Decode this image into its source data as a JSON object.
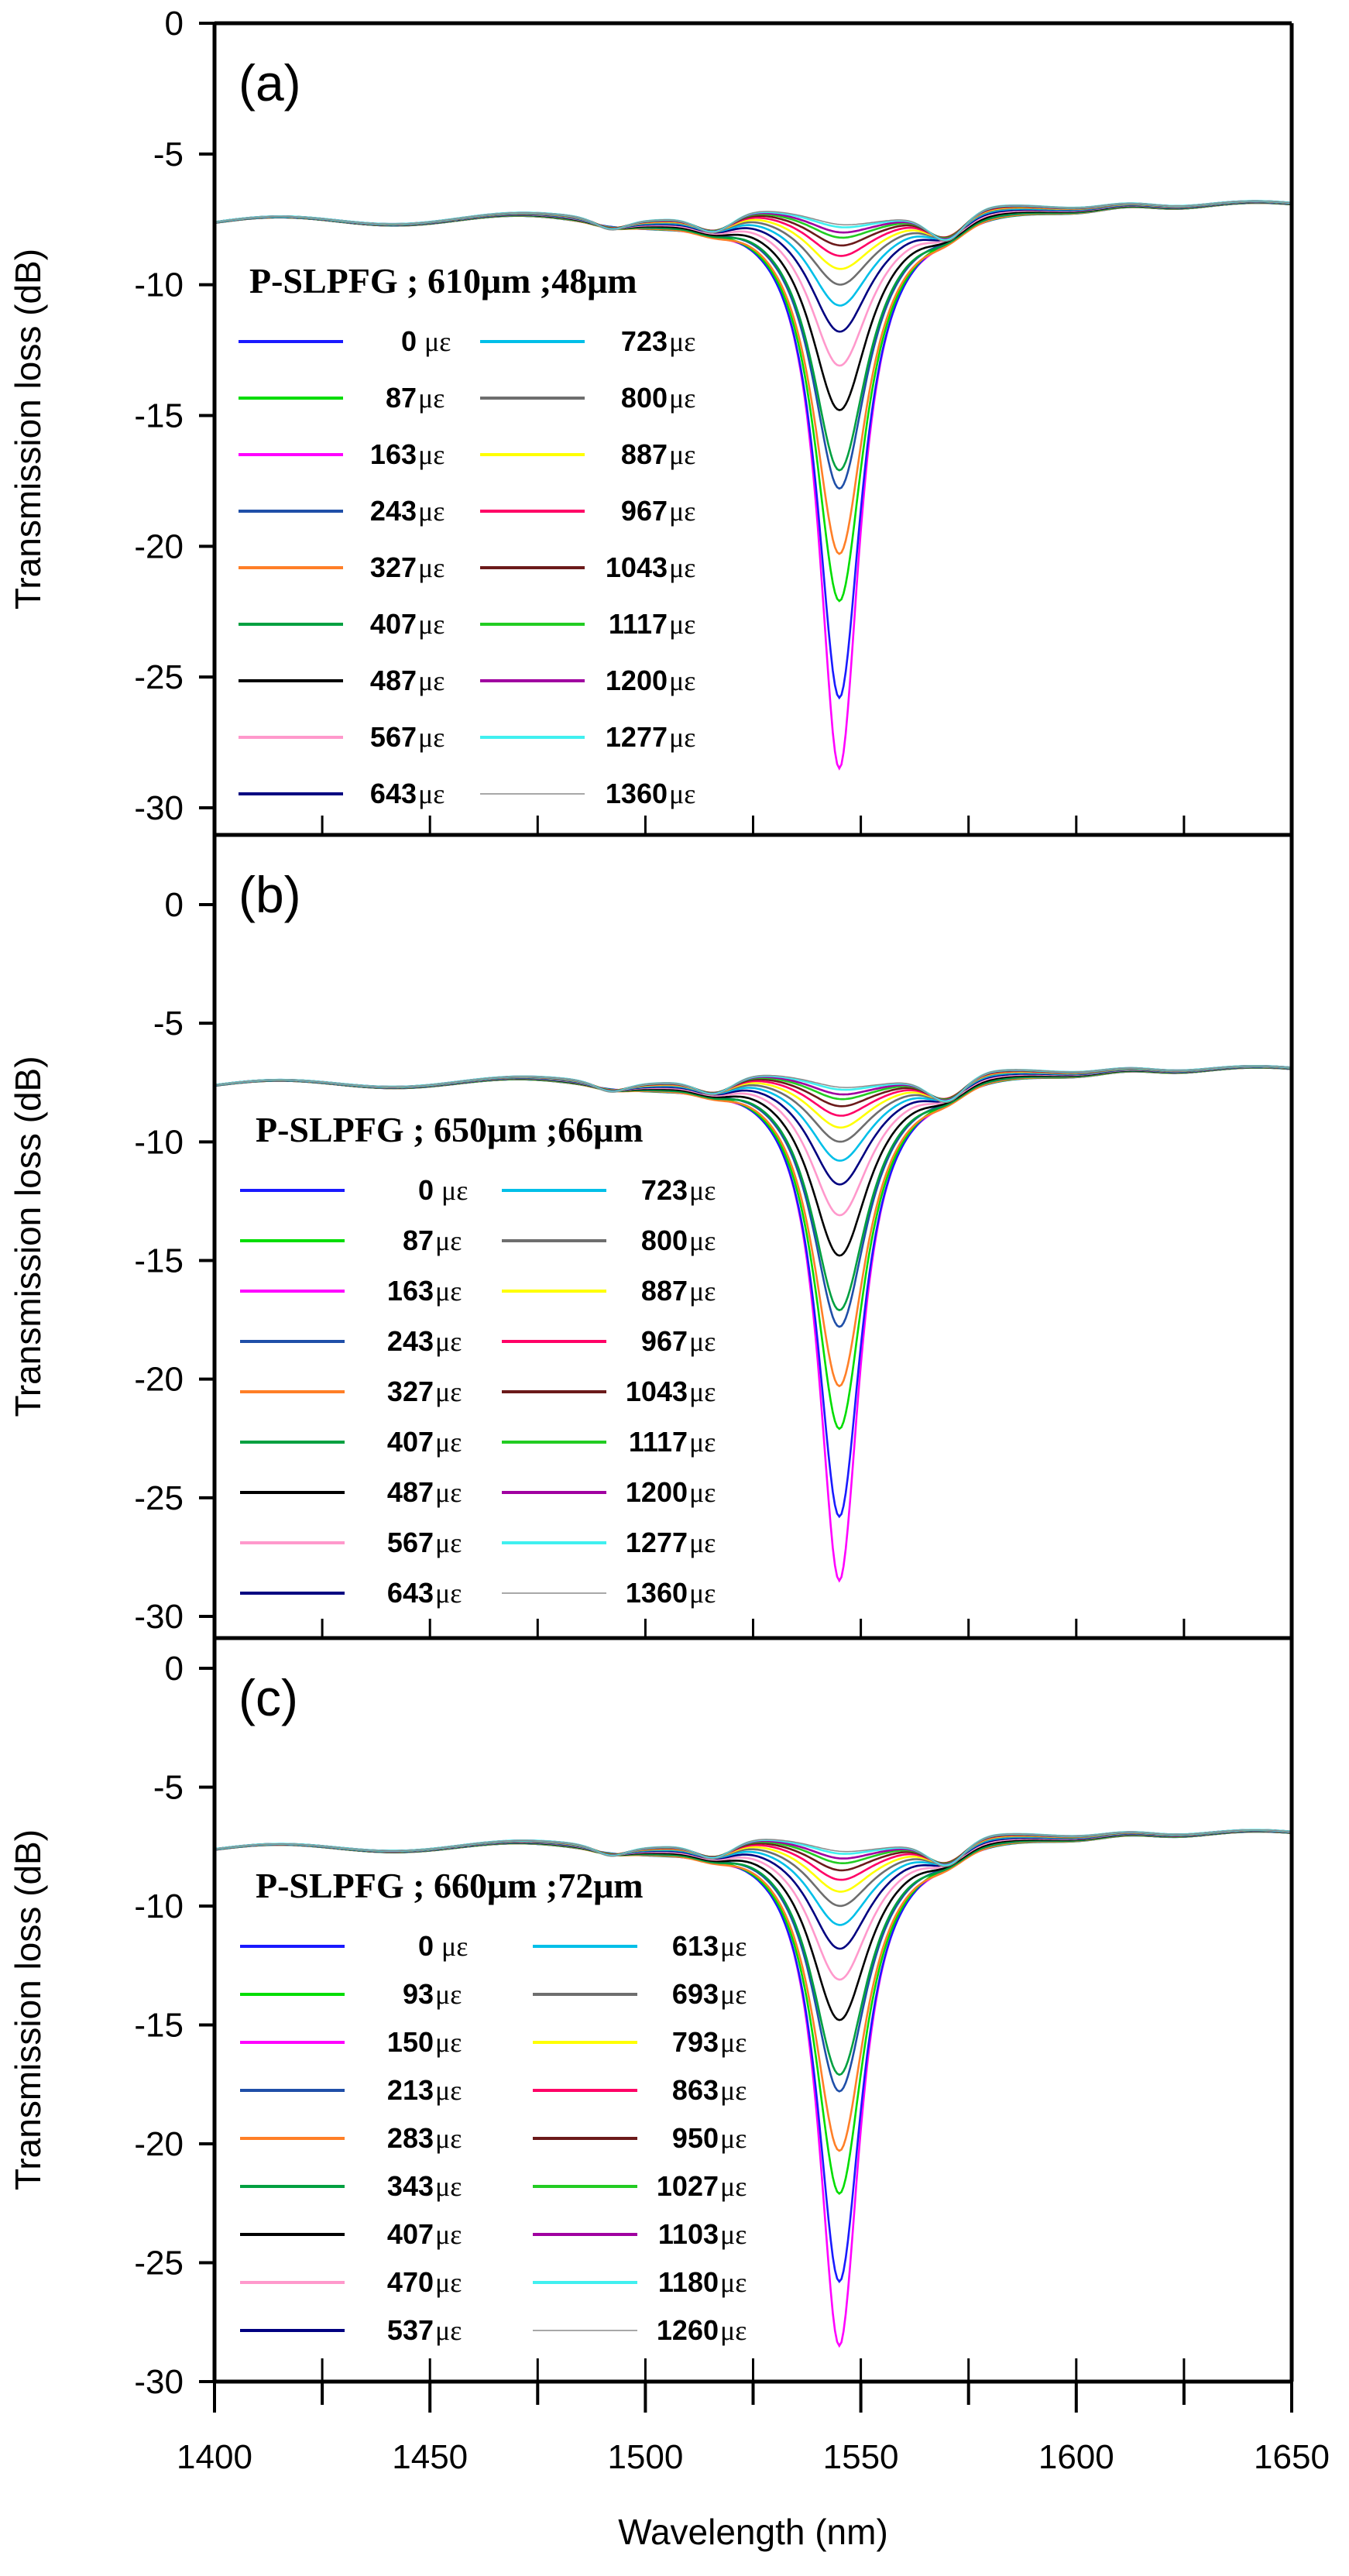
{
  "chart_data": [
    {
      "type": "line",
      "panel_label": "(a)",
      "legend_title": "P-SLPFG ; 610μm ;48μm",
      "unit": "με",
      "xlabel": "Wavelength (nm)",
      "ylabel": "Transmission loss (dB)",
      "xlim": [
        1400,
        1650
      ],
      "ylim": [
        -30,
        0
      ],
      "yticks": [
        "0",
        "-5",
        "-10",
        "-15",
        "-20",
        "-25",
        "-30"
      ],
      "xticks": [
        "1400",
        "1450",
        "1500",
        "1550",
        "1600",
        "1650"
      ],
      "series": [
        {
          "name": "0",
          "color": "#1a1aff",
          "depth_db": -26.0
        },
        {
          "name": "87",
          "color": "#00dd00",
          "depth_db": -22.3
        },
        {
          "name": "163",
          "color": "#ff00ff",
          "depth_db": -28.7
        },
        {
          "name": "243",
          "color": "#1f4fa8",
          "depth_db": -18.0
        },
        {
          "name": "327",
          "color": "#ff7f27",
          "depth_db": -20.5
        },
        {
          "name": "407",
          "color": "#00a040",
          "depth_db": -17.3
        },
        {
          "name": "487",
          "color": "#000000",
          "depth_db": -15.0
        },
        {
          "name": "567",
          "color": "#ff99cc",
          "depth_db": -13.3
        },
        {
          "name": "643",
          "color": "#000080",
          "depth_db": -12.0
        },
        {
          "name": "723",
          "color": "#00bfe8",
          "depth_db": -11.0
        },
        {
          "name": "800",
          "color": "#6e6e6e",
          "depth_db": -10.2
        },
        {
          "name": "887",
          "color": "#ffff00",
          "depth_db": -9.6
        },
        {
          "name": "967",
          "color": "#ff0066",
          "depth_db": -9.1
        },
        {
          "name": "1043",
          "color": "#6b1a1a",
          "depth_db": -8.7
        },
        {
          "name": "1117",
          "color": "#22cc22",
          "depth_db": -8.4
        },
        {
          "name": "1200",
          "color": "#a000a0",
          "depth_db": -8.2
        },
        {
          "name": "1277",
          "color": "#40f0f0",
          "depth_db": -8.0
        },
        {
          "name": "1360",
          "color": "#8c8c8c",
          "depth_db": -7.9
        }
      ],
      "dip_center_nm": 1545,
      "baseline_db": -7.5
    },
    {
      "type": "line",
      "panel_label": "(b)",
      "legend_title": "P-SLPFG ; 650μm ;66μm",
      "unit": "με",
      "xlabel": "Wavelength (nm)",
      "ylabel": "Transmission loss (dB)",
      "xlim": [
        1400,
        1650
      ],
      "ylim": [
        -30,
        0
      ],
      "yticks": [
        "0",
        "-5",
        "-10",
        "-15",
        "-20",
        "-25",
        "-30"
      ],
      "xticks": [
        "1400",
        "1450",
        "1500",
        "1550",
        "1600",
        "1650"
      ],
      "series": [
        {
          "name": "0",
          "color": "#1a1aff",
          "depth_db": -26.0
        },
        {
          "name": "87",
          "color": "#00dd00",
          "depth_db": -22.3
        },
        {
          "name": "163",
          "color": "#ff00ff",
          "depth_db": -28.7
        },
        {
          "name": "243",
          "color": "#1f4fa8",
          "depth_db": -18.0
        },
        {
          "name": "327",
          "color": "#ff7f27",
          "depth_db": -20.5
        },
        {
          "name": "407",
          "color": "#00a040",
          "depth_db": -17.3
        },
        {
          "name": "487",
          "color": "#000000",
          "depth_db": -15.0
        },
        {
          "name": "567",
          "color": "#ff99cc",
          "depth_db": -13.3
        },
        {
          "name": "643",
          "color": "#000080",
          "depth_db": -12.0
        },
        {
          "name": "723",
          "color": "#00bfe8",
          "depth_db": -11.0
        },
        {
          "name": "800",
          "color": "#6e6e6e",
          "depth_db": -10.2
        },
        {
          "name": "887",
          "color": "#ffff00",
          "depth_db": -9.6
        },
        {
          "name": "967",
          "color": "#ff0066",
          "depth_db": -9.1
        },
        {
          "name": "1043",
          "color": "#6b1a1a",
          "depth_db": -8.7
        },
        {
          "name": "1117",
          "color": "#22cc22",
          "depth_db": -8.4
        },
        {
          "name": "1200",
          "color": "#a000a0",
          "depth_db": -8.2
        },
        {
          "name": "1277",
          "color": "#40f0f0",
          "depth_db": -8.0
        },
        {
          "name": "1360",
          "color": "#8c8c8c",
          "depth_db": -7.9
        }
      ],
      "dip_center_nm": 1545,
      "baseline_db": -7.5
    },
    {
      "type": "line",
      "panel_label": "(c)",
      "legend_title": "P-SLPFG ; 660μm ;72μm",
      "unit": "με",
      "xlabel": "Wavelength (nm)",
      "ylabel": "Transmission loss (dB)",
      "xlim": [
        1400,
        1650
      ],
      "ylim": [
        -30,
        0
      ],
      "yticks": [
        "0",
        "-5",
        "-10",
        "-15",
        "-20",
        "-25",
        "-30"
      ],
      "xticks": [
        "1400",
        "1450",
        "1500",
        "1550",
        "1600",
        "1650"
      ],
      "series": [
        {
          "name": "0",
          "color": "#1a1aff",
          "depth_db": -26.0
        },
        {
          "name": "93",
          "color": "#00dd00",
          "depth_db": -22.3
        },
        {
          "name": "150",
          "color": "#ff00ff",
          "depth_db": -28.7
        },
        {
          "name": "213",
          "color": "#1f4fa8",
          "depth_db": -18.0
        },
        {
          "name": "283",
          "color": "#ff7f27",
          "depth_db": -20.5
        },
        {
          "name": "343",
          "color": "#00a040",
          "depth_db": -17.3
        },
        {
          "name": "407",
          "color": "#000000",
          "depth_db": -15.0
        },
        {
          "name": "470",
          "color": "#ff99cc",
          "depth_db": -13.3
        },
        {
          "name": "537",
          "color": "#000080",
          "depth_db": -12.0
        },
        {
          "name": "613",
          "color": "#00bfe8",
          "depth_db": -11.0
        },
        {
          "name": "693",
          "color": "#6e6e6e",
          "depth_db": -10.2
        },
        {
          "name": "793",
          "color": "#ffff00",
          "depth_db": -9.6
        },
        {
          "name": "863",
          "color": "#ff0066",
          "depth_db": -9.1
        },
        {
          "name": "950",
          "color": "#6b1a1a",
          "depth_db": -8.7
        },
        {
          "name": "1027",
          "color": "#22cc22",
          "depth_db": -8.4
        },
        {
          "name": "1103",
          "color": "#a000a0",
          "depth_db": -8.2
        },
        {
          "name": "1180",
          "color": "#40f0f0",
          "depth_db": -8.0
        },
        {
          "name": "1260",
          "color": "#8c8c8c",
          "depth_db": -7.9
        }
      ],
      "dip_center_nm": 1545,
      "baseline_db": -7.5
    }
  ]
}
